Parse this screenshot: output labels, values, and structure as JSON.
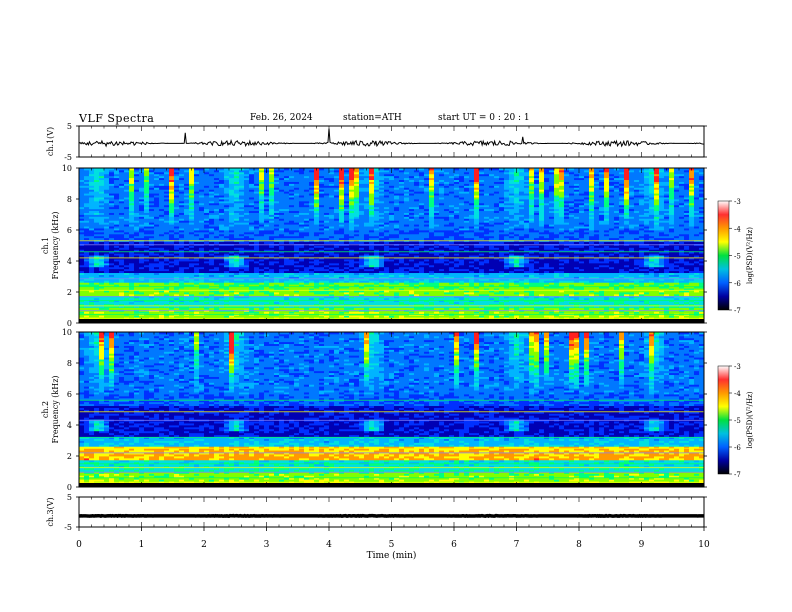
{
  "header": {
    "title": "VLF  Spectra",
    "date": "Feb. 26, 2024",
    "station": "station=ATH",
    "start": "start  UT  =    0  : 20 : 1"
  },
  "colorbar": {
    "ticks": [
      "-3",
      "-4",
      "-5",
      "-6",
      "-7"
    ],
    "label": "log(PSD)(V²/Hz)",
    "stops": [
      "#ffffff",
      "#ff3030",
      "#ff9900",
      "#ffff00",
      "#00e040",
      "#00c0e0",
      "#0060ff",
      "#0000a0",
      "#000000"
    ]
  },
  "chart_data": [
    {
      "type": "line",
      "ylabel": "ch.1(V)",
      "yticks": [
        "5",
        "-5"
      ],
      "ylim": [
        -5,
        5
      ],
      "xlim": [
        0,
        10
      ],
      "series": [
        {
          "color": "#000000",
          "level": -0.6,
          "noise": 0.9,
          "spikes": [
            [
              1.7,
              2.8
            ],
            [
              4.0,
              4.2
            ],
            [
              7.1,
              1.5
            ]
          ]
        }
      ]
    },
    {
      "type": "heatmap",
      "ylabel": "ch.1\nFrequency (kHz)",
      "yticks": [
        "0",
        "2",
        "4",
        "6",
        "8",
        "10"
      ],
      "ylim": [
        0,
        10
      ],
      "xlim": [
        0,
        10
      ],
      "zlabel": "log(PSD)(V²/Hz)",
      "zlim": [
        -7,
        -3
      ],
      "bursts": [
        0.3,
        2.5,
        4.7,
        7.0,
        9.2
      ]
    },
    {
      "type": "heatmap",
      "ylabel": "ch.2\nFrequency (kHz)",
      "yticks": [
        "0",
        "2",
        "4",
        "6",
        "8",
        "10"
      ],
      "ylim": [
        0,
        10
      ],
      "xlim": [
        0,
        10
      ],
      "zlabel": "log(PSD)(V²/Hz)",
      "zlim": [
        -7,
        -3
      ],
      "bursts": [
        0.3,
        2.5,
        4.7,
        7.0,
        9.2
      ]
    },
    {
      "type": "line",
      "ylabel": "ch.3(V)",
      "yticks": [
        "5",
        "-5"
      ],
      "ylim": [
        -5,
        5
      ],
      "xlim": [
        0,
        10
      ],
      "xlabel": "Time  (min)",
      "xticks": [
        "0",
        "1",
        "2",
        "3",
        "4",
        "5",
        "6",
        "7",
        "8",
        "9",
        "10"
      ],
      "series": [
        {
          "color": "#000000",
          "level": -1.3,
          "noise": 0.1,
          "spikes": []
        }
      ]
    }
  ]
}
